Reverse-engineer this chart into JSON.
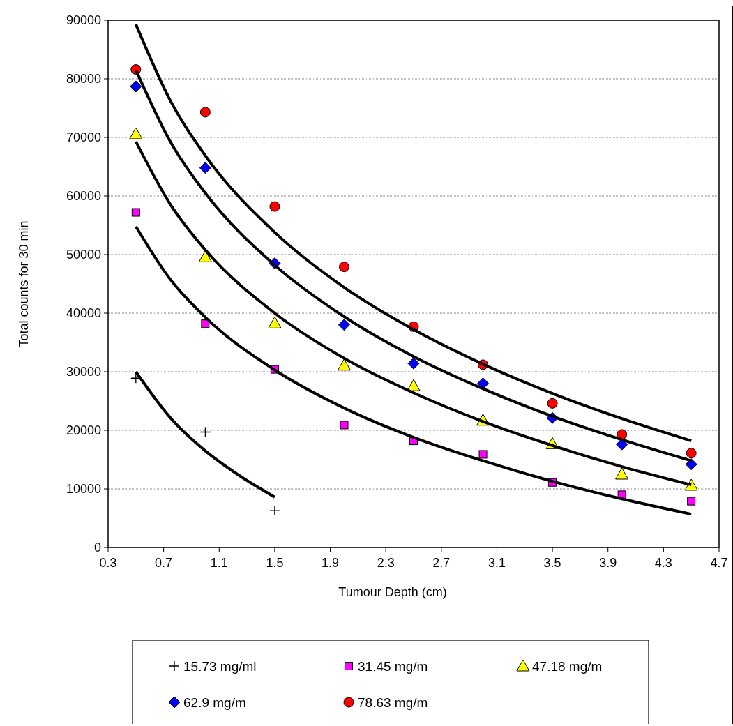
{
  "chart_data": {
    "type": "scatter",
    "xlabel": "Tumour Depth (cm)",
    "ylabel": "Total counts for 30 min",
    "xlim": [
      0.3,
      4.7
    ],
    "xticks": [
      0.3,
      0.7,
      1.1,
      1.5,
      1.9,
      2.3,
      2.7,
      3.1,
      3.5,
      3.9,
      4.3,
      4.7
    ],
    "ylim": [
      0,
      90000
    ],
    "yticks": [
      0,
      10000,
      20000,
      30000,
      40000,
      50000,
      60000,
      70000,
      80000,
      90000
    ],
    "grid": "y",
    "legend": "bottom",
    "series": [
      {
        "name": "15.73 mg/ml",
        "marker": "cross",
        "color": "#000000",
        "x": [
          0.5,
          1.0,
          1.5
        ],
        "values": [
          28900,
          19700,
          6300
        ]
      },
      {
        "name": "31.45 mg/m",
        "marker": "square",
        "color": "#ff00ff",
        "x": [
          0.5,
          1.0,
          1.5,
          2.0,
          2.5,
          3.0,
          3.5,
          4.0,
          4.5
        ],
        "values": [
          57200,
          38200,
          30400,
          20900,
          18200,
          15900,
          11100,
          9000,
          7900
        ]
      },
      {
        "name": "47.18 mg/m",
        "marker": "triangle",
        "color": "#ffff00",
        "x": [
          0.5,
          1.0,
          1.5,
          2.0,
          2.5,
          3.0,
          3.5,
          4.0,
          4.5
        ],
        "values": [
          70600,
          49600,
          38300,
          31100,
          27600,
          21700,
          17700,
          12500,
          10600
        ]
      },
      {
        "name": "62.9 mg/m",
        "marker": "diamond",
        "color": "#0000ff",
        "x": [
          0.5,
          1.0,
          1.5,
          2.0,
          2.5,
          3.0,
          3.5,
          4.0,
          4.5
        ],
        "values": [
          78700,
          64800,
          48500,
          38000,
          31400,
          28000,
          22100,
          17600,
          14200
        ]
      },
      {
        "name": "78.63 mg/m",
        "marker": "circle",
        "color": "#ff0000",
        "x": [
          0.5,
          1.0,
          1.5,
          2.0,
          2.5,
          3.0,
          3.5,
          4.0,
          4.5
        ],
        "values": [
          81600,
          74300,
          58200,
          47900,
          37700,
          31200,
          24600,
          19300,
          16100
        ]
      },
      {
        "type": "line",
        "color": "#000000",
        "marker": "none",
        "x": [
          0.5,
          0.75,
          1.0,
          1.25,
          1.5
        ],
        "values": [
          30000,
          22100,
          16500,
          12200,
          8600
        ]
      },
      {
        "type": "line",
        "color": "#000000",
        "marker": "none",
        "x": [
          0.5,
          0.75,
          1.0,
          1.5,
          2.0,
          2.5,
          3.0,
          3.5,
          4.0,
          4.5
        ],
        "values": [
          54800,
          45700,
          39300,
          30300,
          23800,
          18800,
          14800,
          11300,
          8300,
          5700
        ]
      },
      {
        "type": "line",
        "color": "#000000",
        "marker": "none",
        "x": [
          0.5,
          0.75,
          1.0,
          1.5,
          2.0,
          2.5,
          3.0,
          3.5,
          4.0,
          4.5
        ],
        "values": [
          69300,
          58500,
          50800,
          40000,
          32300,
          26400,
          21500,
          17400,
          13800,
          10700
        ]
      },
      {
        "type": "line",
        "color": "#000000",
        "marker": "none",
        "x": [
          0.5,
          0.75,
          1.0,
          1.5,
          2.0,
          2.5,
          3.0,
          3.5,
          4.0,
          4.5
        ],
        "values": [
          81500,
          69200,
          60500,
          48200,
          39400,
          32600,
          27100,
          22400,
          18400,
          14800
        ]
      },
      {
        "type": "line",
        "color": "#000000",
        "marker": "none",
        "x": [
          0.5,
          0.75,
          1.0,
          1.5,
          2.0,
          2.5,
          3.0,
          3.5,
          4.0,
          4.5
        ],
        "values": [
          89300,
          76200,
          66900,
          53800,
          44400,
          37200,
          31300,
          26300,
          22000,
          18200
        ]
      }
    ]
  }
}
